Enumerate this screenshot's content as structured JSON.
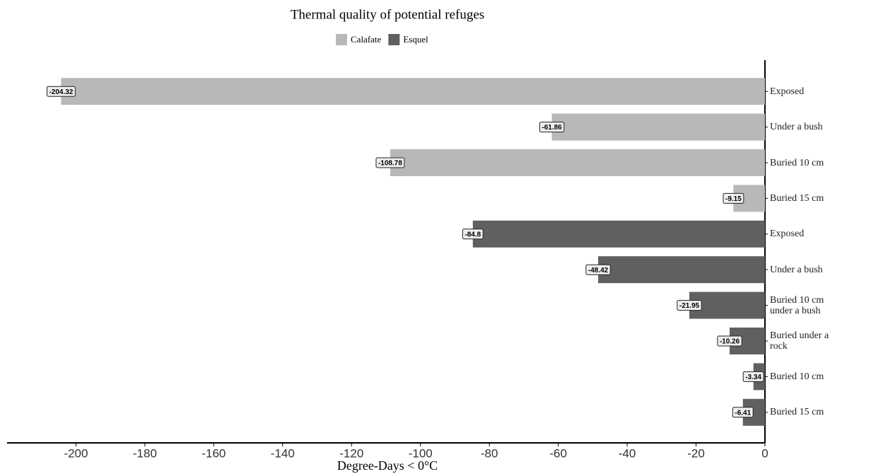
{
  "chart_data": {
    "type": "bar",
    "orientation": "horizontal",
    "title": "Thermal quality of potential refuges",
    "x_label": "Degree-Days < 0°C",
    "categories": [
      "Exposed",
      "Under a bush",
      "Buried 10 cm",
      "Buried 15 cm",
      "Exposed",
      "Under a bush",
      "Buried 10 cm under a bush",
      "Buried under a rock",
      "Buried 10 cm",
      "Buried 15 cm"
    ],
    "series": [
      {
        "name": "Calafate",
        "color": "#b8b8b8",
        "values": [
          -204.32,
          -61.86,
          -108.78,
          -9.15,
          null,
          null,
          null,
          null,
          null,
          null
        ]
      },
      {
        "name": "Esquel",
        "color": "#606060",
        "values": [
          null,
          null,
          null,
          null,
          -84.8,
          -48.42,
          -21.95,
          -10.26,
          -3.34,
          -6.41
        ]
      }
    ],
    "xlim": [
      -220,
      0
    ],
    "xticks": [
      -200,
      -180,
      -160,
      -140,
      -120,
      -100,
      -80,
      -60,
      -40,
      -20,
      0
    ],
    "legend": "top"
  }
}
